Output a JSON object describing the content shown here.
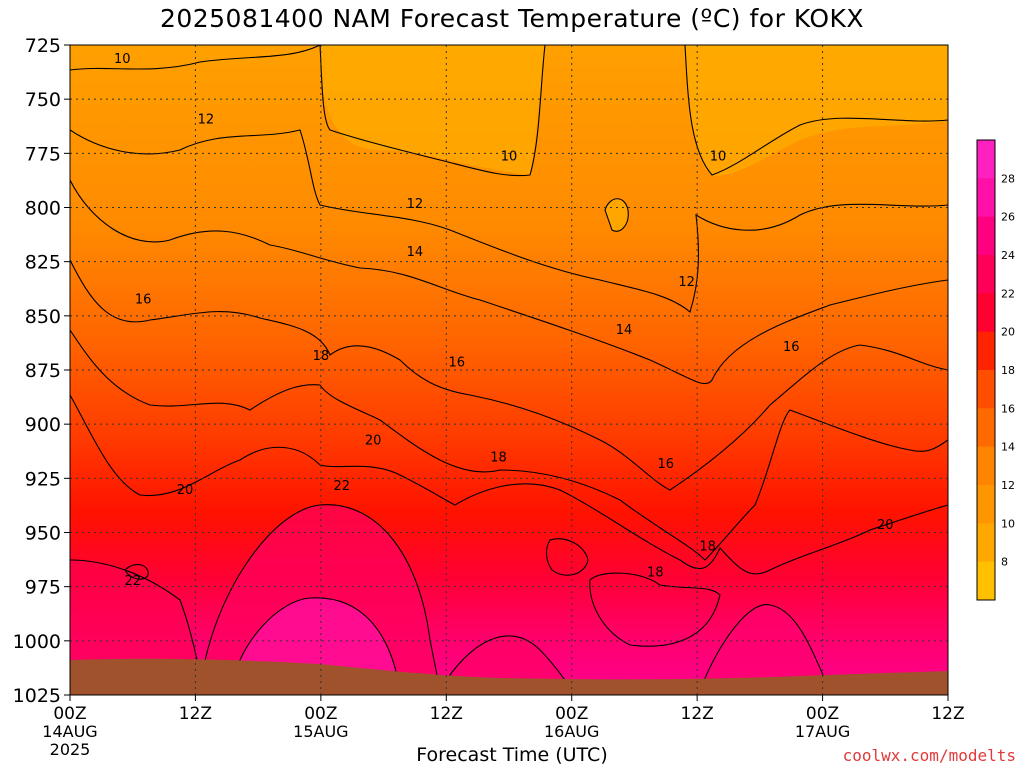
{
  "chart_data": {
    "type": "contour",
    "title": "2025081400 NAM Forecast Temperature (ºC) for KOKX",
    "xlabel": "Forecast Time (UTC)",
    "ylabel": "",
    "y_axis": {
      "scale": "pressure-hPa",
      "range": [
        725,
        1025
      ],
      "ticks": [
        725,
        750,
        775,
        800,
        825,
        850,
        875,
        900,
        925,
        950,
        975,
        1000,
        1025
      ],
      "inverted": true
    },
    "x_axis": {
      "range_hours": [
        0,
        84
      ],
      "ticks": [
        {
          "hour": 0,
          "label": "00Z",
          "sub": "14AUG",
          "sub2": "2025"
        },
        {
          "hour": 12,
          "label": "12Z",
          "sub": "",
          "sub2": ""
        },
        {
          "hour": 24,
          "label": "00Z",
          "sub": "15AUG",
          "sub2": ""
        },
        {
          "hour": 36,
          "label": "12Z",
          "sub": "",
          "sub2": ""
        },
        {
          "hour": 48,
          "label": "00Z",
          "sub": "16AUG",
          "sub2": ""
        },
        {
          "hour": 60,
          "label": "12Z",
          "sub": "",
          "sub2": ""
        },
        {
          "hour": 72,
          "label": "00Z",
          "sub": "17AUG",
          "sub2": ""
        },
        {
          "hour": 84,
          "label": "12Z",
          "sub": "",
          "sub2": ""
        }
      ]
    },
    "grid": "dotted",
    "colorbar": {
      "placement": "right",
      "levels": [
        8,
        10,
        12,
        14,
        16,
        18,
        20,
        22,
        24,
        26,
        28
      ],
      "colors": [
        "#ffc000",
        "#ffa800",
        "#ff9600",
        "#ff8400",
        "#ff6a00",
        "#ff4e00",
        "#ff2400",
        "#ff0030",
        "#ff0058",
        "#ff0080",
        "#ff10a8",
        "#ff20c0"
      ]
    },
    "contour_labels": [
      {
        "value": "10",
        "hour": 5,
        "p": 731
      },
      {
        "value": "12",
        "hour": 13,
        "p": 759
      },
      {
        "value": "12",
        "hour": 33,
        "p": 798
      },
      {
        "value": "10",
        "hour": 42,
        "p": 776
      },
      {
        "value": "10",
        "hour": 62,
        "p": 776
      },
      {
        "value": "14",
        "hour": 33,
        "p": 820
      },
      {
        "value": "16",
        "hour": 7,
        "p": 842
      },
      {
        "value": "12",
        "hour": 59,
        "p": 834
      },
      {
        "value": "14",
        "hour": 53,
        "p": 856
      },
      {
        "value": "16",
        "hour": 69,
        "p": 864
      },
      {
        "value": "18",
        "hour": 24,
        "p": 868
      },
      {
        "value": "16",
        "hour": 37,
        "p": 871
      },
      {
        "value": "20",
        "hour": 29,
        "p": 907
      },
      {
        "value": "18",
        "hour": 41,
        "p": 915
      },
      {
        "value": "16",
        "hour": 57,
        "p": 918
      },
      {
        "value": "20",
        "hour": 11,
        "p": 930
      },
      {
        "value": "22",
        "hour": 26,
        "p": 928
      },
      {
        "value": "18",
        "hour": 61,
        "p": 956
      },
      {
        "value": "18",
        "hour": 56,
        "p": 968
      },
      {
        "value": "20",
        "hour": 78,
        "p": 946
      },
      {
        "value": "22",
        "hour": 6,
        "p": 972
      }
    ],
    "terrain": {
      "color": "#a0522d",
      "surface_pressure_start": 1004,
      "surface_pressure_end": 1010
    }
  },
  "watermark": "coolwx.com/modelts"
}
